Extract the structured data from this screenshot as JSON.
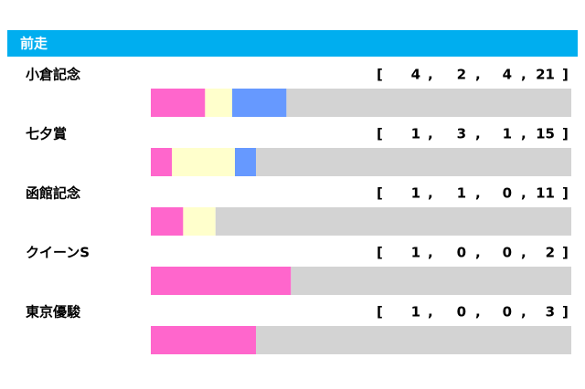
{
  "chart_data": {
    "type": "bar",
    "orientation": "horizontal",
    "stacked": true,
    "normalized": true,
    "title": "前走",
    "title_color": "#00aeef",
    "bracket_open": "[",
    "separator": ",",
    "bracket_close": "]",
    "categories": [
      "小倉記念",
      "七夕賞",
      "函館記念",
      "クイーンS",
      "東京優駿"
    ],
    "series": [
      {
        "color": "#ff66cc",
        "values": [
          4,
          1,
          1,
          1,
          1
        ]
      },
      {
        "color": "#ffffcc",
        "values": [
          2,
          3,
          1,
          0,
          0
        ]
      },
      {
        "color": "#6699ff",
        "values": [
          4,
          1,
          0,
          0,
          0
        ]
      },
      {
        "color": "#d3d3d3",
        "values": [
          21,
          15,
          11,
          2,
          3
        ]
      }
    ]
  }
}
